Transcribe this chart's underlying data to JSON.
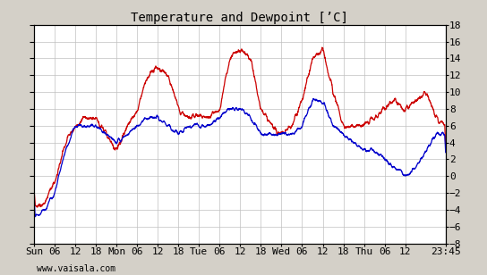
{
  "title": "Temperature and Dewpoint [’C]",
  "xlabel_bottom": "www.vaisala.com",
  "ylim": [
    -8,
    18
  ],
  "yticks": [
    -8,
    -6,
    -4,
    -2,
    0,
    2,
    4,
    6,
    8,
    10,
    12,
    14,
    16,
    18
  ],
  "x_tick_labels": [
    "Sun",
    "06",
    "12",
    "18",
    "Mon",
    "06",
    "12",
    "18",
    "Tue",
    "06",
    "12",
    "18",
    "Wed",
    "06",
    "12",
    "18",
    "Thu",
    "06",
    "12",
    "23:45"
  ],
  "x_tick_positions": [
    0,
    6,
    12,
    18,
    24,
    30,
    36,
    42,
    48,
    54,
    60,
    66,
    72,
    78,
    84,
    90,
    96,
    102,
    108,
    119.75
  ],
  "xlim": [
    0,
    119.75
  ],
  "temp_color": "#cc0000",
  "dewp_color": "#0000cc",
  "bg_color": "#d4d0c8",
  "plot_bg_color": "#ffffff",
  "grid_color": "#c0c0c0",
  "linewidth": 0.9,
  "title_fontsize": 10,
  "tick_fontsize": 8
}
